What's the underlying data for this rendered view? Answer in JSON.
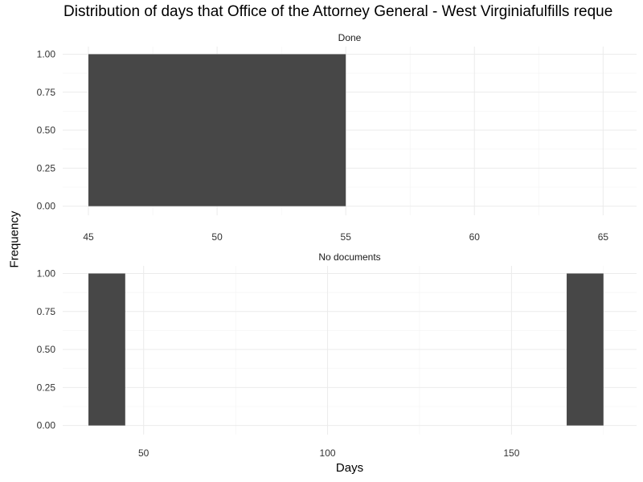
{
  "chart_data": {
    "type": "bar",
    "title": "Distribution of days that Office of the Attorney General - West Virginiafulfills reque",
    "xlabel": "Days",
    "ylabel": "Frequency",
    "grid": true,
    "bar_color": "#474747",
    "panels": [
      {
        "label": "Done",
        "xlim": [
          44,
          66.3
        ],
        "ylim": [
          -0.06,
          1.05
        ],
        "x_ticks": [
          45,
          50,
          55,
          60,
          65
        ],
        "y_ticks": [
          0,
          0.25,
          0.5,
          0.75,
          1
        ],
        "y_tick_labels": [
          "0.00",
          "0.25",
          "0.50",
          "0.75",
          "1.00"
        ],
        "bars": [
          {
            "x_start": 45,
            "x_end": 55,
            "count": 1
          }
        ]
      },
      {
        "label": "No documents",
        "xlim": [
          28,
          184
        ],
        "ylim": [
          -0.06,
          1.05
        ],
        "x_ticks": [
          50,
          100,
          150
        ],
        "y_ticks": [
          0,
          0.25,
          0.5,
          0.75,
          1
        ],
        "y_tick_labels": [
          "0.00",
          "0.25",
          "0.50",
          "0.75",
          "1.00"
        ],
        "bars": [
          {
            "x_start": 35,
            "x_end": 45,
            "count": 1
          },
          {
            "x_start": 165,
            "x_end": 175,
            "count": 1
          }
        ]
      }
    ]
  }
}
